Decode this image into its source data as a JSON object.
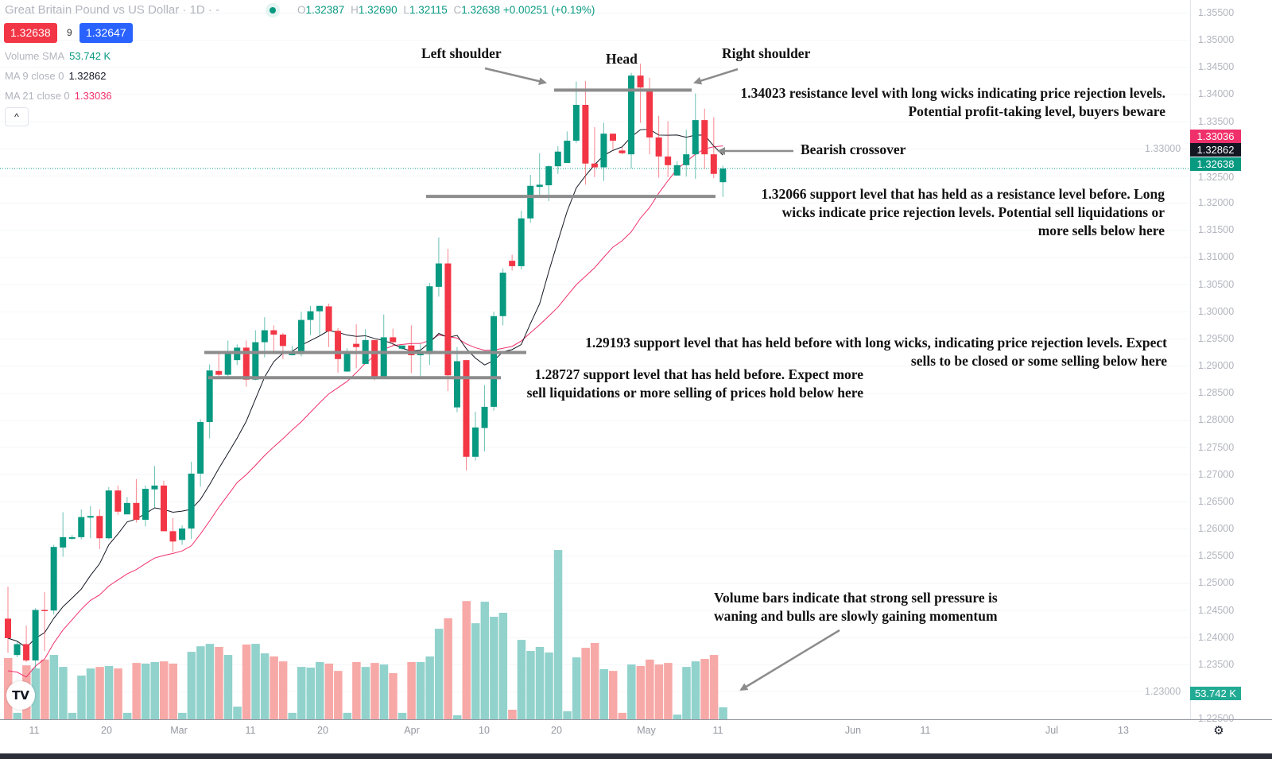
{
  "header": {
    "title": "Great Britain Pound vs US Dollar · 1D · -",
    "ohlc": {
      "o_label": "O",
      "o": "1.32387",
      "h_label": "H",
      "h": "1.32690",
      "l_label": "L",
      "l": "1.32115",
      "c_label": "C",
      "c": "1.32638",
      "change": "+0.00251 (+0.19%)"
    },
    "sell_price": "1.32638",
    "spread": "9",
    "buy_price": "1.32647"
  },
  "legend": {
    "volume": {
      "label": "Volume SMA",
      "value": "53.742 K"
    },
    "ma9": {
      "label": "MA 9 close 0",
      "value": "1.32862"
    },
    "ma21": {
      "label": "MA 21 close 0",
      "value": "1.33036"
    },
    "collapse_icon": "chevron-up-icon"
  },
  "price_tags": {
    "ma21": "1.33036",
    "ma9": "1.32862",
    "last": "1.32638",
    "volume": "53.742 K"
  },
  "colors": {
    "up": "#089981",
    "down": "#f23645",
    "vol_up": "#92d2cc",
    "vol_down": "#f7a9a7",
    "ma9": "#131722",
    "ma21": "#f0306b",
    "level_line": "#8c8c8c",
    "buy": "#2962ff"
  },
  "annotations": {
    "left_shoulder": "Left shoulder",
    "head": "Head",
    "right_shoulder": "Right shoulder",
    "resistance": [
      "1.34023 resistance level with long wicks indicating price rejection levels.",
      "Potential profit-taking level, buyers beware"
    ],
    "bearish": "Bearish crossover",
    "support_132066": [
      "1.32066 support level that has held as a resistance level before.  Long",
      "wicks indicate price rejection levels. Potential sell liquidations or",
      "more sells below here"
    ],
    "support_129193": [
      "1.29193 support level that has held before with long wicks, indicating price rejection levels. Expect",
      "sells to be closed or some selling below here"
    ],
    "support_128727": [
      "1.28727 support level that has held before. Expect more",
      "sell liquidations or more selling of prices hold below here"
    ],
    "volume": [
      "Volume bars indicate that strong sell pressure is",
      "waning and bulls are slowly gaining momentum"
    ]
  },
  "chart_data": {
    "type": "candlestick",
    "y_ticks": [
      "1.35500",
      "1.35000",
      "1.34500",
      "1.34000",
      "1.33500",
      "1.33000",
      "1.32500",
      "1.32000",
      "1.31500",
      "1.31000",
      "1.30500",
      "1.30000",
      "1.29500",
      "1.29000",
      "1.28500",
      "1.28000",
      "1.27500",
      "1.27000",
      "1.26500",
      "1.26000",
      "1.25500",
      "1.25000",
      "1.24500",
      "1.24000",
      "1.23500",
      "1.23000",
      "1.22500"
    ],
    "ylim": [
      1.225,
      1.355
    ],
    "x_ticks": [
      "11",
      "20",
      "Mar",
      "11",
      "20",
      "Apr",
      "10",
      "20",
      "May",
      "11",
      "Jun",
      "11",
      "Jul",
      "13"
    ],
    "levels": [
      1.34023,
      1.32066,
      1.29193,
      1.28727
    ],
    "ma_periods": [
      9,
      21
    ],
    "ohlc": [
      [
        1.2435,
        1.2494,
        1.2372,
        1.2399
      ],
      [
        1.2368,
        1.2394,
        1.2364,
        1.2388
      ],
      [
        1.2388,
        1.2422,
        1.2355,
        1.2358
      ],
      [
        1.2358,
        1.2454,
        1.2343,
        1.2451
      ],
      [
        1.2451,
        1.2484,
        1.2375,
        1.245
      ],
      [
        1.245,
        1.2571,
        1.2443,
        1.2567
      ],
      [
        1.2566,
        1.2631,
        1.2549,
        1.2585
      ],
      [
        1.2582,
        1.2589,
        1.258,
        1.2585
      ],
      [
        1.2585,
        1.2636,
        1.2581,
        1.2622
      ],
      [
        1.2621,
        1.2642,
        1.2583,
        1.2624
      ],
      [
        1.2624,
        1.2636,
        1.2563,
        1.2583
      ],
      [
        1.2583,
        1.2677,
        1.2581,
        1.2671
      ],
      [
        1.2671,
        1.268,
        1.2626,
        1.2632
      ],
      [
        1.2627,
        1.2659,
        1.2627,
        1.2648
      ],
      [
        1.2648,
        1.2692,
        1.2612,
        1.2617
      ],
      [
        1.2617,
        1.268,
        1.2605,
        1.2674
      ],
      [
        1.2673,
        1.2716,
        1.264,
        1.268
      ],
      [
        1.268,
        1.2689,
        1.2596,
        1.2596
      ],
      [
        1.2596,
        1.262,
        1.2558,
        1.2577
      ],
      [
        1.258,
        1.2607,
        1.2571,
        1.2601
      ],
      [
        1.2601,
        1.2724,
        1.2582,
        1.2702
      ],
      [
        1.2702,
        1.2802,
        1.2678,
        1.2797
      ],
      [
        1.2797,
        1.2903,
        1.2767,
        1.2892
      ],
      [
        1.2891,
        1.2924,
        1.2876,
        1.2884
      ],
      [
        1.2884,
        1.2947,
        1.2878,
        1.2924
      ],
      [
        1.2911,
        1.294,
        1.2902,
        1.2934
      ],
      [
        1.2934,
        1.2947,
        1.2862,
        1.2875
      ],
      [
        1.2875,
        1.2966,
        1.2874,
        1.2944
      ],
      [
        1.2944,
        1.299,
        1.2916,
        1.2966
      ],
      [
        1.2966,
        1.2975,
        1.2922,
        1.2958
      ],
      [
        1.2958,
        1.2961,
        1.2913,
        1.2937
      ],
      [
        1.292,
        1.2937,
        1.292,
        1.2923
      ],
      [
        1.2922,
        1.3,
        1.2918,
        1.2985
      ],
      [
        1.2985,
        1.3011,
        1.2957,
        1.3001
      ],
      [
        1.3001,
        1.3011,
        1.2957,
        1.3011
      ],
      [
        1.301,
        1.3015,
        1.2935,
        1.2964
      ],
      [
        1.2965,
        1.297,
        1.2888,
        1.2913
      ],
      [
        1.289,
        1.2933,
        1.2889,
        1.2923
      ],
      [
        1.2941,
        1.2977,
        1.2896,
        1.2935
      ],
      [
        1.2904,
        1.2968,
        1.2904,
        1.2948
      ],
      [
        1.2948,
        1.2948,
        1.2874,
        1.2877
      ],
      [
        1.2877,
        1.2995,
        1.2877,
        1.2953
      ],
      [
        1.2953,
        1.2969,
        1.2938,
        1.2944
      ],
      [
        1.2932,
        1.2938,
        1.293,
        1.2938
      ],
      [
        1.2938,
        1.2975,
        1.2887,
        1.292
      ],
      [
        1.292,
        1.2941,
        1.2881,
        1.2926
      ],
      [
        1.2922,
        1.3053,
        1.2902,
        1.3047
      ],
      [
        1.3046,
        1.3137,
        1.3028,
        1.3089
      ],
      [
        1.3089,
        1.3116,
        1.2854,
        1.2883
      ],
      [
        1.2824,
        1.2935,
        1.2815,
        1.2909
      ],
      [
        1.2911,
        1.2911,
        1.2708,
        1.2733
      ],
      [
        1.2733,
        1.2816,
        1.2726,
        1.2787
      ],
      [
        1.2786,
        1.2865,
        1.2743,
        1.2825
      ],
      [
        1.2825,
        1.3,
        1.2818,
        1.2992
      ],
      [
        1.2992,
        1.308,
        1.2975,
        1.3072
      ],
      [
        1.3094,
        1.3105,
        1.3076,
        1.3084
      ],
      [
        1.3084,
        1.3186,
        1.3078,
        1.3172
      ],
      [
        1.3172,
        1.3252,
        1.3164,
        1.3232
      ],
      [
        1.323,
        1.3292,
        1.3213,
        1.3234
      ],
      [
        1.3233,
        1.327,
        1.3204,
        1.3268
      ],
      [
        1.3268,
        1.3305,
        1.3254,
        1.3295
      ],
      [
        1.3274,
        1.3332,
        1.3274,
        1.3315
      ],
      [
        1.3315,
        1.3424,
        1.3311,
        1.3381
      ],
      [
        1.3381,
        1.3425,
        1.3234,
        1.3273
      ],
      [
        1.3273,
        1.334,
        1.3248,
        1.3266
      ],
      [
        1.3266,
        1.3348,
        1.3241,
        1.3328
      ],
      [
        1.3328,
        1.3328,
        1.3299,
        1.3315
      ],
      [
        1.3297,
        1.3303,
        1.329,
        1.3292
      ],
      [
        1.329,
        1.344,
        1.3264,
        1.3435
      ],
      [
        1.3435,
        1.3457,
        1.3348,
        1.3413
      ],
      [
        1.3406,
        1.3431,
        1.329,
        1.3321
      ],
      [
        1.3321,
        1.3361,
        1.3247,
        1.3286
      ],
      [
        1.3286,
        1.3351,
        1.3248,
        1.327
      ],
      [
        1.3251,
        1.3277,
        1.3251,
        1.327
      ],
      [
        1.327,
        1.3335,
        1.3249,
        1.329
      ],
      [
        1.329,
        1.3402,
        1.3245,
        1.3353
      ],
      [
        1.3353,
        1.3374,
        1.3263,
        1.329
      ],
      [
        1.329,
        1.3358,
        1.3246,
        1.3254
      ],
      [
        1.32387,
        1.3269,
        1.32115,
        1.32638
      ]
    ],
    "volume_k": [
      276,
      29,
      243,
      229,
      269,
      290,
      236,
      29,
      197,
      229,
      236,
      240,
      229,
      29,
      254,
      251,
      258,
      261,
      251,
      29,
      304,
      329,
      340,
      326,
      290,
      57,
      337,
      340,
      297,
      283,
      261,
      29,
      236,
      233,
      258,
      251,
      218,
      29,
      258,
      236,
      254,
      247,
      208,
      29,
      258,
      258,
      283,
      408,
      455,
      18,
      533,
      433,
      530,
      462,
      480,
      43,
      358,
      308,
      326,
      301,
      763,
      36,
      279,
      322,
      344,
      226,
      218,
      29,
      247,
      240,
      269,
      247,
      254,
      21,
      236,
      261,
      272,
      290,
      53.742
    ]
  }
}
